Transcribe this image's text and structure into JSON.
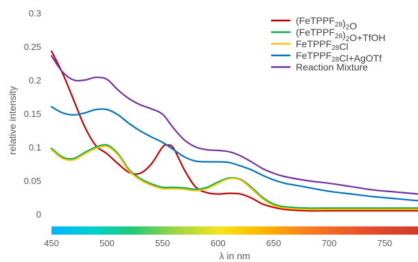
{
  "chart_data": {
    "type": "line",
    "title": "",
    "xlabel": "λ in nm",
    "ylabel": "relative intensity",
    "xlim": [
      450,
      780
    ],
    "ylim": [
      0,
      0.3
    ],
    "x_ticks": [
      "450",
      "500",
      "550",
      "600",
      "650",
      "700",
      "750"
    ],
    "y_ticks": [
      "0",
      "0.05",
      "0.1",
      "0.15",
      "0.2",
      "0.25",
      "0.3"
    ],
    "grid": false,
    "legend_position": "top-right",
    "spectrum_bar": true,
    "series": [
      {
        "name": "(FeTPPF28)2O",
        "label_parts": [
          [
            "(FeTPPF",
            ""
          ],
          [
            "28",
            "sub"
          ],
          [
            ")",
            ""
          ],
          [
            "2",
            "sub"
          ],
          [
            "O",
            ""
          ]
        ],
        "color": "#c00000",
        "x": [
          450,
          460,
          470,
          480,
          490,
          500,
          510,
          520,
          530,
          540,
          550,
          555,
          560,
          570,
          580,
          590,
          600,
          610,
          620,
          630,
          640,
          650,
          660,
          680,
          700,
          720,
          740,
          760,
          780
        ],
        "y": [
          0.243,
          0.21,
          0.17,
          0.13,
          0.102,
          0.09,
          0.075,
          0.062,
          0.061,
          0.075,
          0.1,
          0.103,
          0.098,
          0.065,
          0.04,
          0.032,
          0.03,
          0.031,
          0.03,
          0.024,
          0.015,
          0.01,
          0.007,
          0.005,
          0.005,
          0.005,
          0.005,
          0.005,
          0.005
        ]
      },
      {
        "name": "(FeTPPF28)2O+TfOH",
        "label_parts": [
          [
            "(FeTPPF",
            ""
          ],
          [
            "28",
            "sub"
          ],
          [
            ")",
            ""
          ],
          [
            "2",
            "sub"
          ],
          [
            "O+TfOH",
            ""
          ]
        ],
        "color": "#00b050",
        "x": [
          450,
          460,
          470,
          480,
          490,
          500,
          510,
          520,
          530,
          540,
          550,
          560,
          570,
          580,
          590,
          600,
          610,
          620,
          630,
          640,
          650,
          660,
          680,
          700,
          720,
          740,
          760,
          780
        ],
        "y": [
          0.098,
          0.085,
          0.083,
          0.092,
          0.1,
          0.103,
          0.09,
          0.066,
          0.053,
          0.045,
          0.04,
          0.04,
          0.039,
          0.037,
          0.04,
          0.048,
          0.054,
          0.052,
          0.04,
          0.025,
          0.015,
          0.011,
          0.009,
          0.009,
          0.009,
          0.009,
          0.009,
          0.009
        ]
      },
      {
        "name": "FeTPPF28Cl",
        "label_parts": [
          [
            "FeTPPF",
            ""
          ],
          [
            "28",
            "sub"
          ],
          [
            "Cl",
            ""
          ]
        ],
        "color": "#ffc000",
        "x": [
          450,
          460,
          470,
          480,
          490,
          500,
          510,
          520,
          530,
          540,
          550,
          560,
          570,
          580,
          590,
          600,
          610,
          620,
          630,
          640,
          650,
          660,
          680,
          700,
          720,
          740,
          760,
          780
        ],
        "y": [
          0.096,
          0.083,
          0.081,
          0.09,
          0.098,
          0.101,
          0.088,
          0.064,
          0.051,
          0.043,
          0.038,
          0.038,
          0.037,
          0.035,
          0.038,
          0.046,
          0.053,
          0.051,
          0.038,
          0.023,
          0.013,
          0.009,
          0.007,
          0.007,
          0.007,
          0.007,
          0.007,
          0.007
        ]
      },
      {
        "name": "FeTPPF28Cl+AgOTf",
        "label_parts": [
          [
            "FeTPPF",
            ""
          ],
          [
            "28",
            "sub"
          ],
          [
            "Cl+AgOTf",
            ""
          ]
        ],
        "color": "#0070c0",
        "x": [
          450,
          460,
          470,
          480,
          490,
          500,
          510,
          520,
          530,
          540,
          550,
          560,
          570,
          580,
          590,
          600,
          610,
          620,
          630,
          640,
          650,
          660,
          670,
          680,
          700,
          720,
          740,
          760,
          780
        ],
        "y": [
          0.16,
          0.151,
          0.148,
          0.151,
          0.156,
          0.156,
          0.148,
          0.135,
          0.124,
          0.115,
          0.107,
          0.096,
          0.085,
          0.079,
          0.078,
          0.078,
          0.077,
          0.072,
          0.066,
          0.058,
          0.051,
          0.046,
          0.043,
          0.04,
          0.034,
          0.03,
          0.026,
          0.023,
          0.02
        ]
      },
      {
        "name": "Reaction Mixture",
        "label_parts": [
          [
            "Reaction Mixture",
            ""
          ]
        ],
        "color": "#7030a0",
        "x": [
          450,
          460,
          470,
          480,
          490,
          500,
          510,
          520,
          530,
          540,
          550,
          560,
          570,
          580,
          590,
          600,
          610,
          620,
          630,
          640,
          650,
          660,
          680,
          700,
          720,
          740,
          760,
          780
        ],
        "y": [
          0.236,
          0.212,
          0.2,
          0.2,
          0.204,
          0.201,
          0.185,
          0.172,
          0.163,
          0.157,
          0.149,
          0.128,
          0.11,
          0.1,
          0.096,
          0.095,
          0.093,
          0.087,
          0.078,
          0.068,
          0.061,
          0.056,
          0.05,
          0.046,
          0.041,
          0.036,
          0.033,
          0.03
        ]
      }
    ]
  }
}
